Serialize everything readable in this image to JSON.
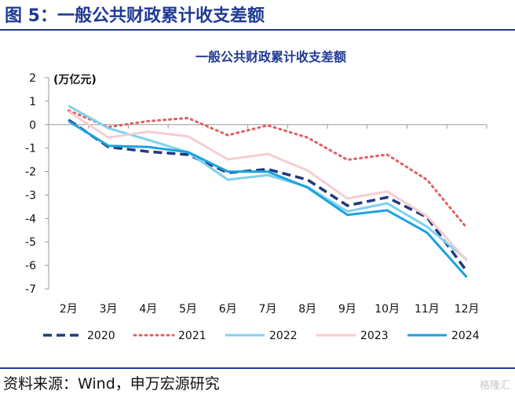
{
  "figure_title": "图 5：一般公共财政累计收支差额",
  "source_note": "资料来源：Wind，申万宏源研究",
  "watermark": "格隆汇",
  "chart_data": {
    "type": "line",
    "title": "一般公共财政累计收支差额",
    "unit_label": "(万亿元)",
    "categories": [
      "2月",
      "3月",
      "4月",
      "5月",
      "6月",
      "7月",
      "8月",
      "9月",
      "10月",
      "11月",
      "12月"
    ],
    "ylim": [
      -7,
      2
    ],
    "yticks": [
      2,
      1,
      0,
      -1,
      -2,
      -3,
      -4,
      -5,
      -6,
      -7
    ],
    "grid": false,
    "legend_position": "bottom",
    "series": [
      {
        "name": "2020",
        "color": "#1F3A7F",
        "style": "dashed",
        "values": [
          0.2,
          -0.95,
          -1.15,
          -1.28,
          -2.05,
          -1.9,
          -2.35,
          -3.45,
          -3.1,
          -3.95,
          -6.25
        ]
      },
      {
        "name": "2021",
        "color": "#E06060",
        "style": "dotted",
        "values": [
          0.6,
          -0.1,
          0.15,
          0.28,
          -0.45,
          -0.03,
          -0.55,
          -1.5,
          -1.28,
          -2.35,
          -4.4
        ]
      },
      {
        "name": "2022",
        "color": "#7FD0F0",
        "style": "solid",
        "values": [
          0.8,
          -0.15,
          -0.65,
          -1.18,
          -2.35,
          -2.15,
          -2.65,
          -3.7,
          -3.35,
          -4.35,
          -5.75
        ]
      },
      {
        "name": "2023",
        "color": "#F6CDD0",
        "style": "solid",
        "values": [
          0.55,
          -0.55,
          -0.3,
          -0.5,
          -1.48,
          -1.25,
          -1.95,
          -3.15,
          -2.85,
          -3.9,
          -5.8
        ]
      },
      {
        "name": "2024",
        "color": "#1AA3DC",
        "style": "solid",
        "values": [
          0.15,
          -0.9,
          -0.95,
          -1.17,
          -2.0,
          -2.0,
          -2.68,
          -3.85,
          -3.65,
          -4.6,
          -6.5
        ]
      }
    ]
  }
}
